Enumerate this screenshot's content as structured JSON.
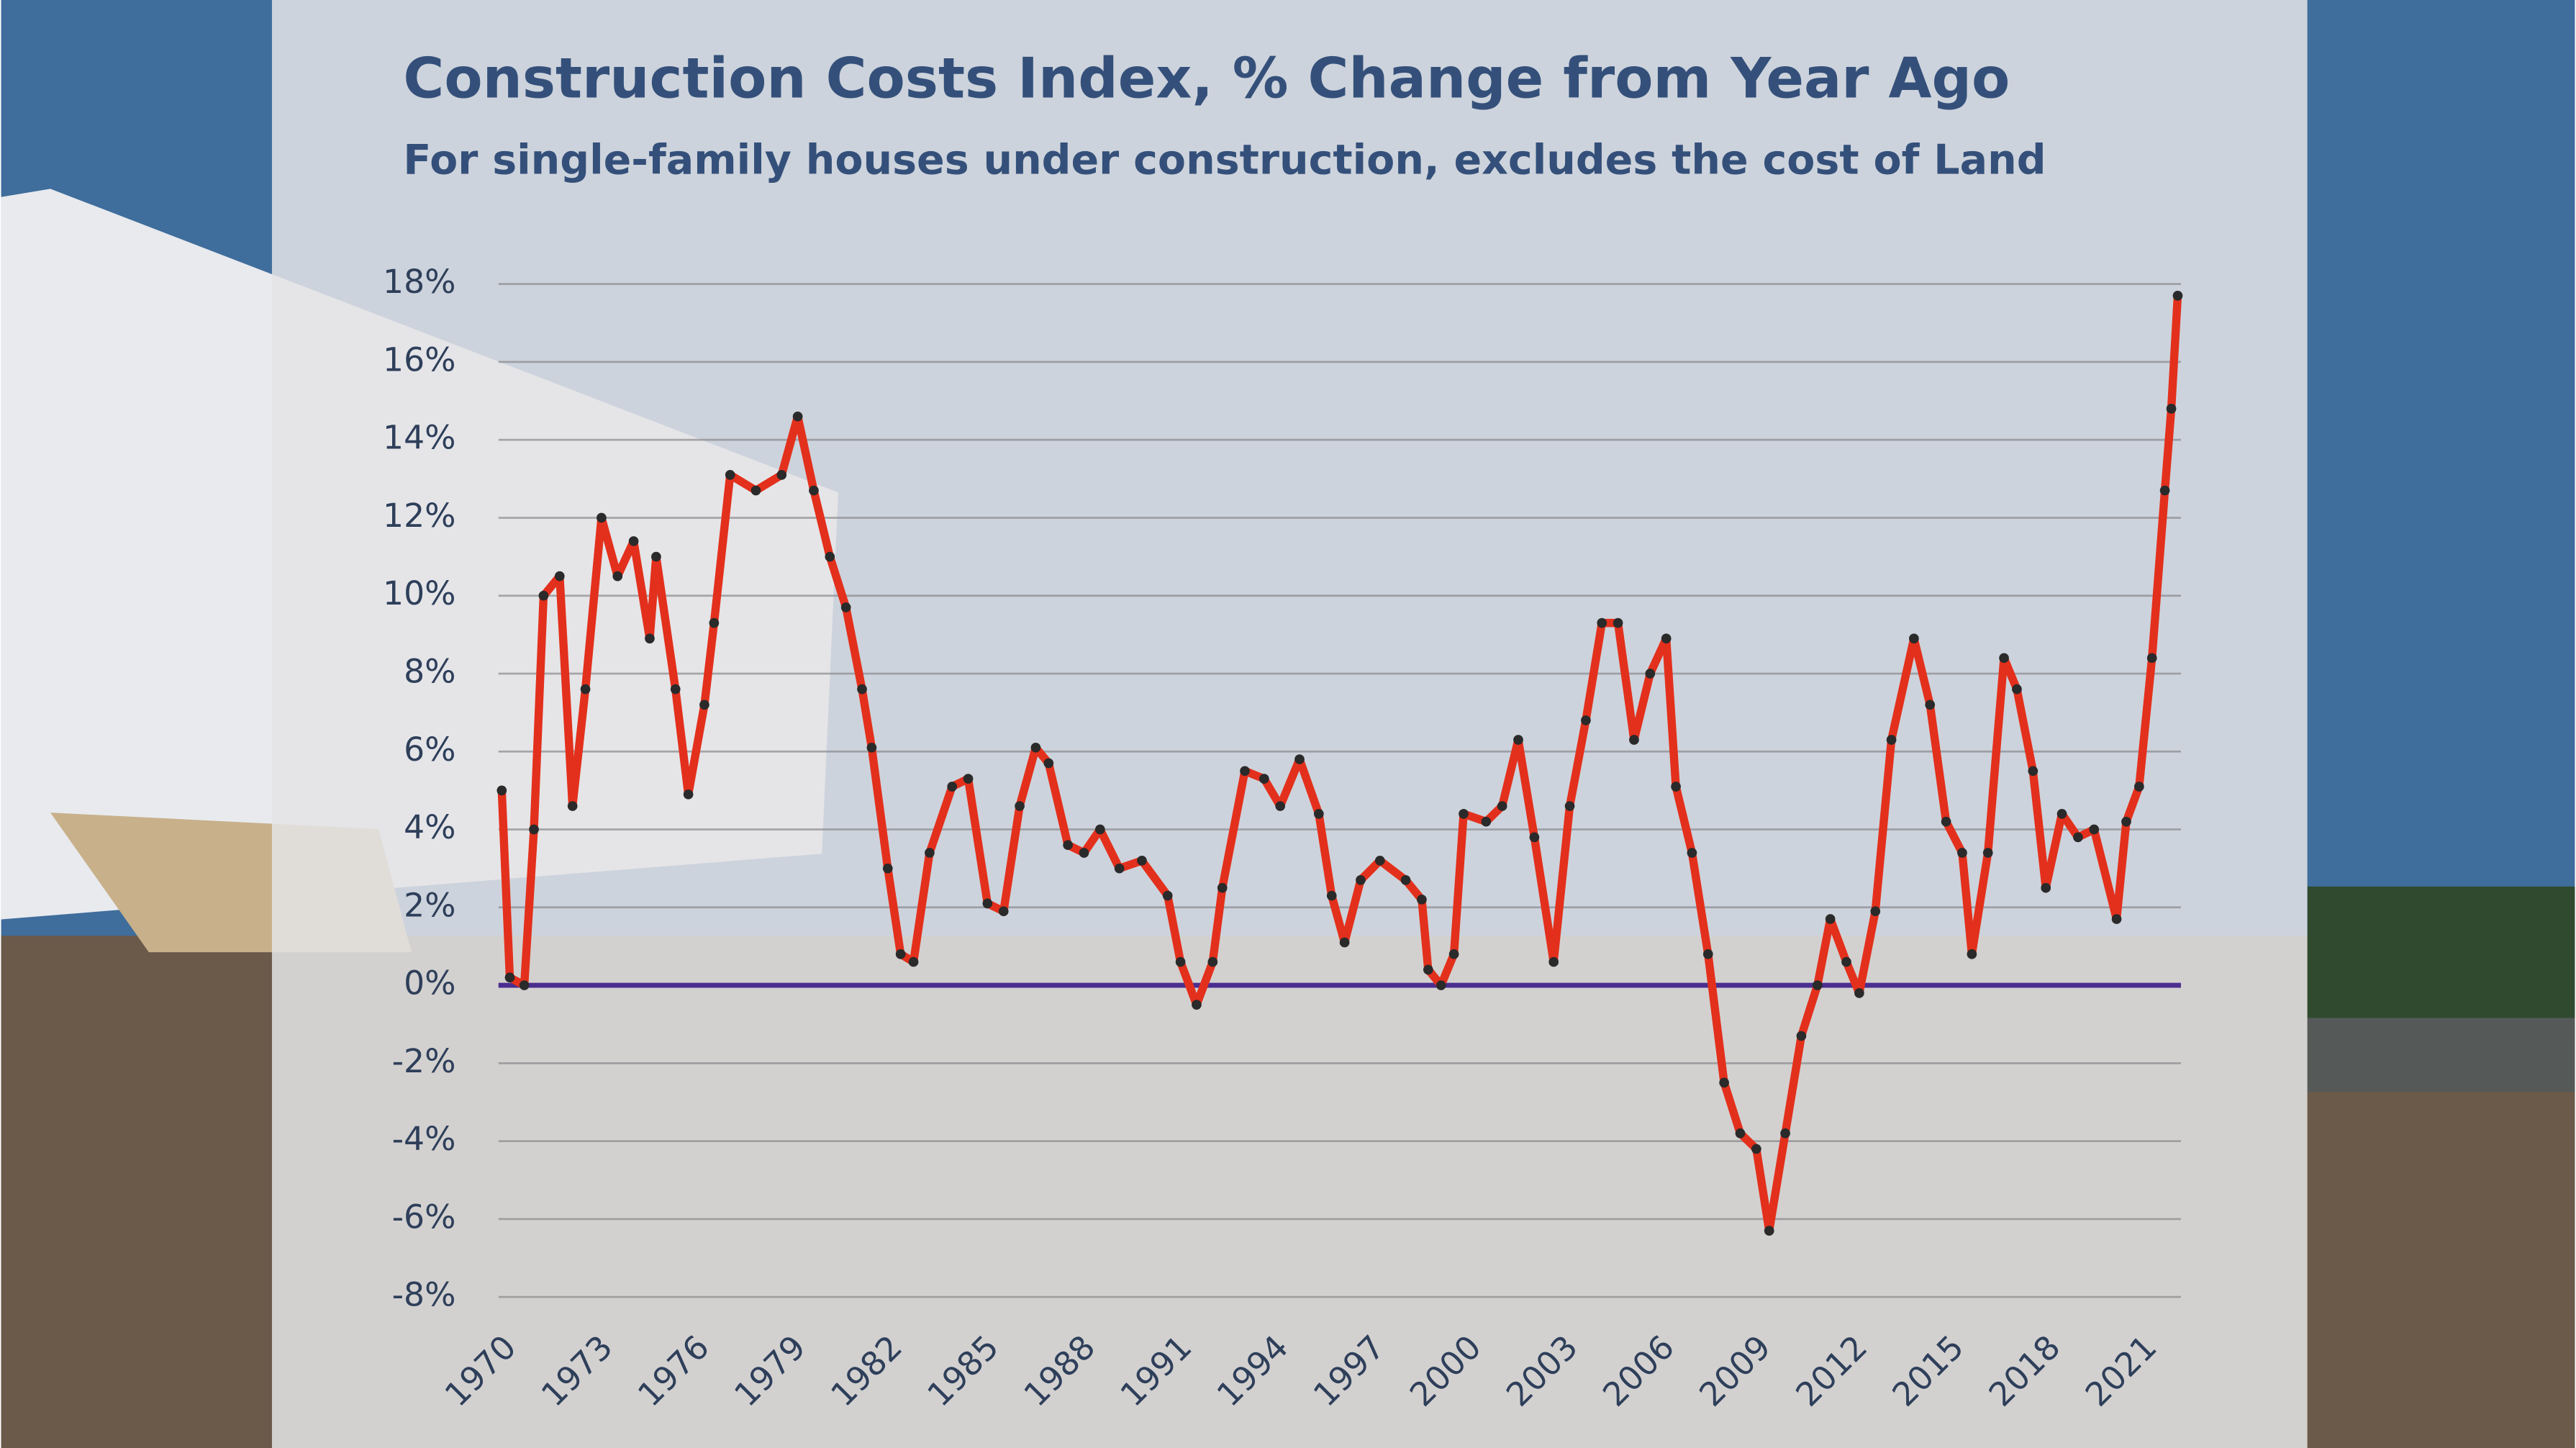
{
  "chart_data": {
    "type": "line",
    "title": "Construction  Costs Index, % Change  from Year Ago",
    "subtitle": "For single-family houses under construction, excludes the cost of Land",
    "x": [
      1970.0,
      1970.25,
      1970.7,
      1971.0,
      1971.3,
      1971.8,
      1972.2,
      1972.6,
      1973.1,
      1973.6,
      1974.1,
      1974.6,
      1974.8,
      1975.4,
      1975.8,
      1976.3,
      1976.6,
      1977.1,
      1977.9,
      1978.7,
      1979.2,
      1979.7,
      1980.2,
      1980.7,
      1981.2,
      1981.5,
      1982.0,
      1982.4,
      1982.8,
      1983.3,
      1984.0,
      1984.5,
      1985.1,
      1985.6,
      1986.1,
      1986.6,
      1987.0,
      1987.6,
      1988.1,
      1988.6,
      1989.2,
      1989.9,
      1990.7,
      1991.1,
      1991.6,
      1992.1,
      1992.4,
      1993.1,
      1993.7,
      1994.2,
      1994.8,
      1995.4,
      1995.8,
      1996.2,
      1996.7,
      1997.3,
      1998.1,
      1998.6,
      1998.8,
      1999.2,
      1999.6,
      1999.9,
      2000.6,
      2001.1,
      2001.6,
      2002.1,
      2002.7,
      2003.2,
      2003.7,
      2004.2,
      2004.7,
      2005.2,
      2005.7,
      2006.2,
      2006.5,
      2007.0,
      2007.5,
      2008.0,
      2008.5,
      2009.0,
      2009.4,
      2009.9,
      2010.4,
      2010.9,
      2011.3,
      2011.8,
      2012.2,
      2012.7,
      2013.2,
      2013.9,
      2014.4,
      2014.9,
      2015.4,
      2015.7,
      2016.2,
      2016.7,
      2017.1,
      2017.6,
      2018.0,
      2018.5,
      2019.0,
      2019.5,
      2020.2,
      2020.5,
      2020.9,
      2021.3,
      2021.7,
      2021.9,
      2022.1
    ],
    "series": [
      {
        "color": "#e3301c",
        "marker_color": "#2a2a2a",
        "values": [
          5,
          0.2,
          0,
          4,
          10,
          10.5,
          4.6,
          7.6,
          12,
          10.5,
          11.4,
          8.9,
          11,
          7.6,
          4.9,
          7.2,
          9.3,
          13.1,
          12.7,
          13.1,
          14.6,
          12.7,
          11,
          9.7,
          7.6,
          6.1,
          3,
          0.8,
          0.6,
          3.4,
          5.1,
          5.3,
          2.1,
          1.9,
          4.6,
          6.1,
          5.7,
          3.6,
          3.4,
          4,
          3,
          3.2,
          2.3,
          0.6,
          -0.5,
          0.6,
          2.5,
          5.5,
          5.3,
          4.6,
          5.8,
          4.4,
          2.3,
          1.1,
          2.7,
          3.2,
          2.7,
          2.2,
          0.4,
          0,
          0.8,
          4.4,
          4.2,
          4.6,
          6.3,
          3.8,
          0.6,
          4.6,
          6.8,
          9.3,
          9.3,
          6.3,
          8,
          8.9,
          5.1,
          3.4,
          0.8,
          -2.5,
          -3.8,
          -4.2,
          -6.3,
          -3.8,
          -1.3,
          0,
          1.7,
          0.6,
          -0.2,
          1.9,
          6.3,
          8.9,
          7.2,
          4.2,
          3.4,
          0.8,
          3.4,
          8.4,
          7.6,
          5.5,
          2.5,
          4.4,
          3.8,
          4,
          1.7,
          4.2,
          5.1,
          8.4,
          12.7,
          14.8,
          17.7
        ]
      }
    ],
    "xlim": [
      1970,
      2022.2
    ],
    "xticks": [
      1970,
      1973,
      1976,
      1979,
      1982,
      1985,
      1988,
      1991,
      1994,
      1997,
      2000,
      2003,
      2006,
      2009,
      2012,
      2015,
      2018,
      2021
    ],
    "ylim": [
      -8,
      18
    ],
    "yticks": [
      {
        "value": -8,
        "label": "-8%"
      },
      {
        "value": -6,
        "label": "-6%"
      },
      {
        "value": -4,
        "label": "-4%"
      },
      {
        "value": -2,
        "label": "-2%"
      },
      {
        "value": 0,
        "label": "0%"
      },
      {
        "value": 2,
        "label": "2%"
      },
      {
        "value": 4,
        "label": "4%"
      },
      {
        "value": 6,
        "label": "6%"
      },
      {
        "value": 8,
        "label": "8%"
      },
      {
        "value": 10,
        "label": "10%"
      },
      {
        "value": 12,
        "label": "12%"
      },
      {
        "value": 14,
        "label": "14%"
      },
      {
        "value": 16,
        "label": "16%"
      },
      {
        "value": 18,
        "label": "18%"
      }
    ],
    "grid": true,
    "zero_line_color": "#4b2e8f"
  }
}
